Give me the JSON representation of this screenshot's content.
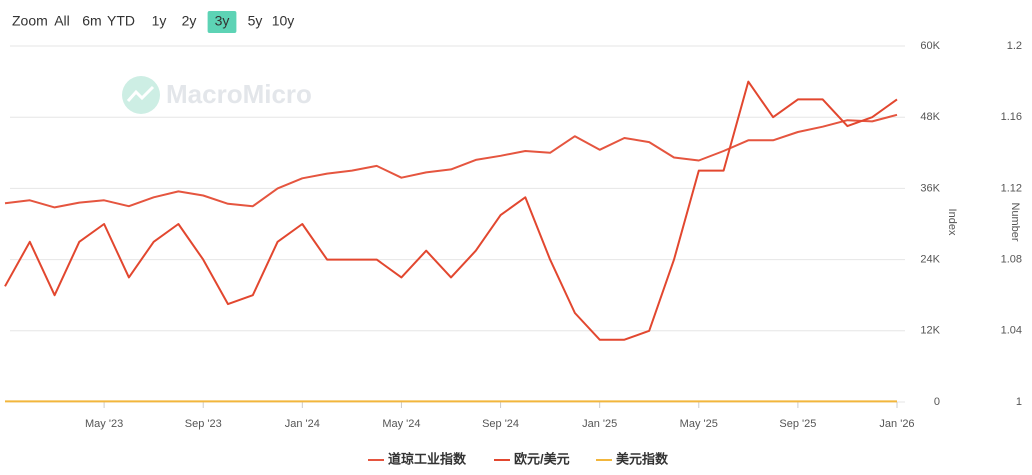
{
  "range_selector": {
    "label": "Zoom",
    "buttons": [
      "All",
      "6m",
      "YTD",
      "1y",
      "2y",
      "3y",
      "5y",
      "10y"
    ],
    "selected_index": 5
  },
  "watermark": "MacroMicro",
  "chart_data": {
    "type": "line",
    "x": [
      "2023-01",
      "2023-02",
      "2023-03",
      "2023-04",
      "2023-05",
      "2023-06",
      "2023-07",
      "2023-08",
      "2023-09",
      "2023-10",
      "2023-11",
      "2023-12",
      "2024-01",
      "2024-02",
      "2024-03",
      "2024-04",
      "2024-05",
      "2024-06",
      "2024-07",
      "2024-08",
      "2024-09",
      "2024-10",
      "2024-11",
      "2024-12",
      "2025-01",
      "2025-02",
      "2025-03",
      "2025-04",
      "2025-05",
      "2025-06",
      "2025-07",
      "2025-08",
      "2025-09",
      "2025-10",
      "2025-11",
      "2025-12",
      "2026-01"
    ],
    "xlim": [
      "2023-01",
      "2026-01"
    ],
    "xticks": [
      {
        "value": "2023-05",
        "label": "May '23"
      },
      {
        "value": "2023-09",
        "label": "Sep '23"
      },
      {
        "value": "2024-01",
        "label": "Jan '24"
      },
      {
        "value": "2024-05",
        "label": "May '24"
      },
      {
        "value": "2024-09",
        "label": "Sep '24"
      },
      {
        "value": "2025-01",
        "label": "Jan '25"
      },
      {
        "value": "2025-05",
        "label": "May '25"
      },
      {
        "value": "2025-09",
        "label": "Sep '25"
      },
      {
        "value": "2026-01",
        "label": "Jan '26"
      }
    ],
    "ylabel": "Index",
    "ylim": [
      0,
      60000
    ],
    "yticks": [
      0,
      {
        "value": 12000,
        "label": "12K"
      },
      {
        "value": 24000,
        "label": "24K"
      },
      {
        "value": 36000,
        "label": "36K"
      },
      {
        "value": 48000,
        "label": "48K"
      },
      {
        "value": 60000,
        "label": "60K"
      }
    ],
    "y2label": "Number",
    "y2lim": [
      1,
      1.2
    ],
    "y2ticks": [
      1,
      1.04,
      1.08,
      1.12,
      1.16,
      1.2
    ],
    "grid": true,
    "series": [
      {
        "name": "道琼工业指数",
        "color": "#e5553f",
        "values": [
          33500,
          34000,
          32800,
          33600,
          34000,
          33000,
          34500,
          35500,
          34800,
          33400,
          33000,
          36000,
          37700,
          38500,
          39000,
          39800,
          37800,
          38700,
          39200,
          40800,
          41500,
          42300,
          42000,
          44800,
          42500,
          44500,
          43800,
          41200,
          40700,
          42300,
          44100,
          44100,
          45500,
          46400,
          47500,
          47300,
          48400
        ]
      },
      {
        "name": "欧元/美元",
        "color": "#e2472f",
        "axis": "y2",
        "values": [
          1.065,
          1.09,
          1.06,
          1.09,
          1.1,
          1.07,
          1.09,
          1.1,
          1.08,
          1.055,
          1.06,
          1.09,
          1.1,
          1.08,
          1.08,
          1.08,
          1.07,
          1.085,
          1.07,
          1.085,
          1.105,
          1.115,
          1.08,
          1.05,
          1.035,
          1.035,
          1.04,
          1.08,
          1.13,
          1.13,
          1.18,
          1.16,
          1.17,
          1.17,
          1.155,
          1.16,
          1.17
        ]
      },
      {
        "name": "美元指数",
        "color": "#f2b63c",
        "values": [
          102,
          104,
          103,
          101,
          102,
          103,
          101,
          102,
          105,
          106,
          103,
          101,
          103,
          104,
          104,
          105,
          105,
          105,
          104,
          101,
          101,
          104,
          106,
          108,
          108,
          107,
          104,
          100,
          100,
          98,
          97,
          98,
          97,
          98,
          100,
          98,
          99
        ]
      }
    ]
  }
}
